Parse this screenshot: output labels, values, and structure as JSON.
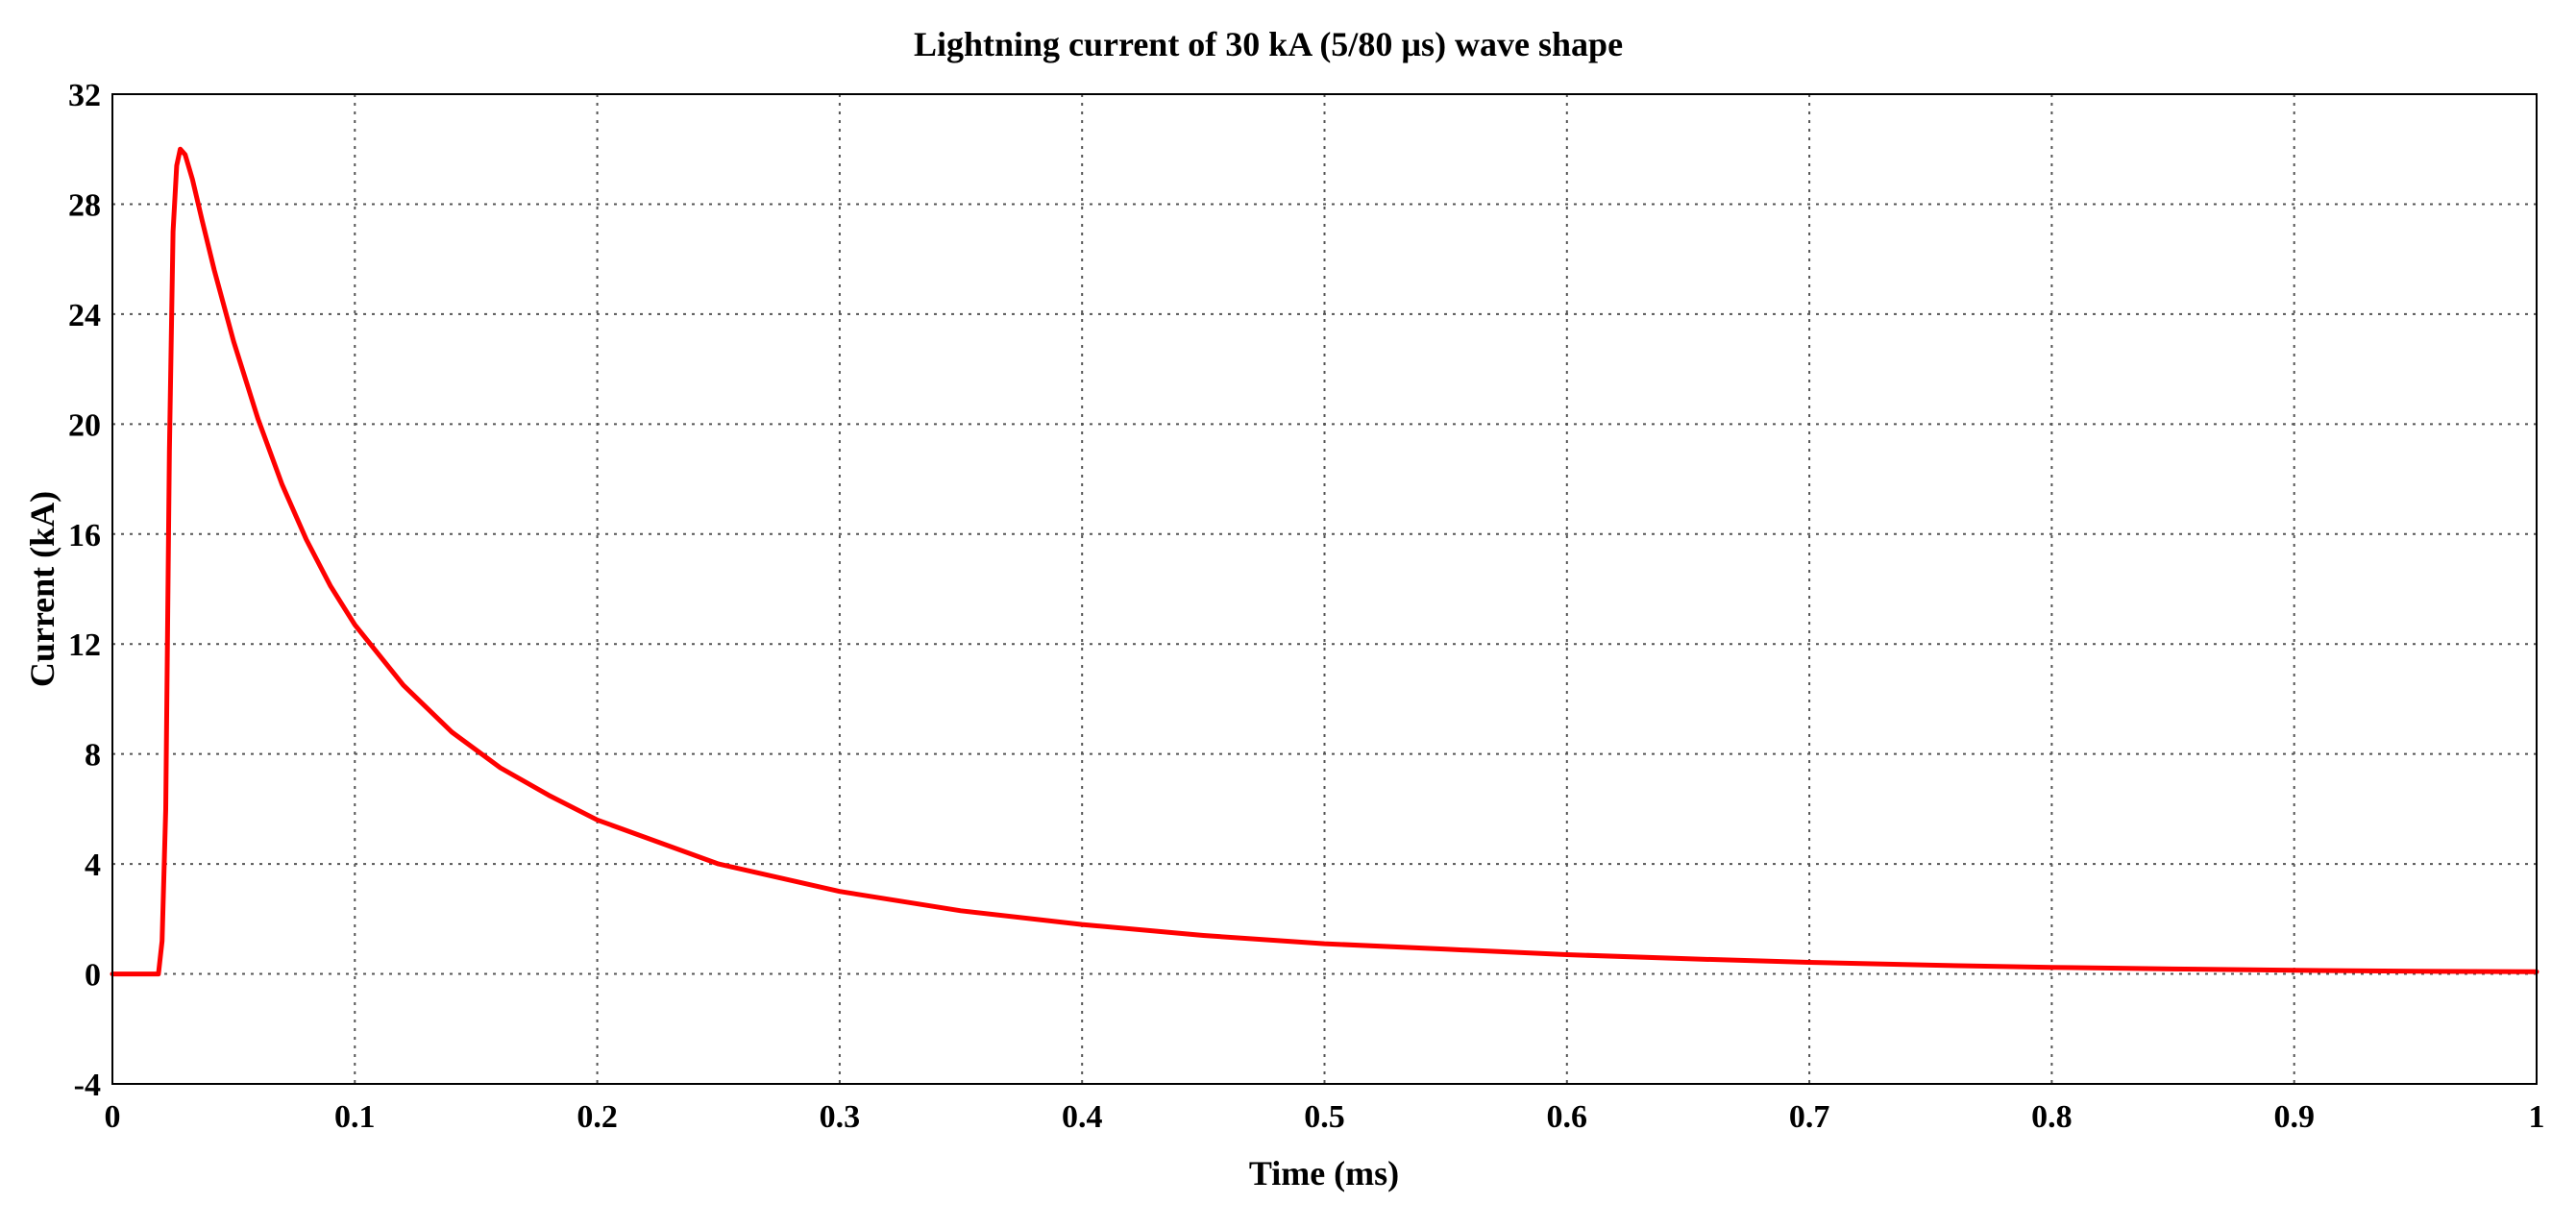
{
  "chart_data": {
    "type": "line",
    "title": "Lightning current of 30 kA (5/80 µs) wave shape",
    "xlabel": "Time (ms)",
    "ylabel": "Current (kA)",
    "xlim": [
      0,
      1
    ],
    "ylim": [
      -4,
      32
    ],
    "xticks": [
      {
        "value": 0,
        "label": "0"
      },
      {
        "value": 0.1,
        "label": "0.1"
      },
      {
        "value": 0.2,
        "label": "0.2"
      },
      {
        "value": 0.3,
        "label": "0.3"
      },
      {
        "value": 0.4,
        "label": "0.4"
      },
      {
        "value": 0.5,
        "label": "0.5"
      },
      {
        "value": 0.6,
        "label": "0.6"
      },
      {
        "value": 0.7,
        "label": "0.7"
      },
      {
        "value": 0.8,
        "label": "0.8"
      },
      {
        "value": 0.9,
        "label": "0.9"
      },
      {
        "value": 1,
        "label": "1"
      }
    ],
    "yticks": [
      {
        "value": 32,
        "label": "32"
      },
      {
        "value": 28,
        "label": "28"
      },
      {
        "value": 24,
        "label": "24"
      },
      {
        "value": 20,
        "label": "20"
      },
      {
        "value": 16,
        "label": "16"
      },
      {
        "value": 12,
        "label": "12"
      },
      {
        "value": 8,
        "label": "8"
      },
      {
        "value": 4,
        "label": "4"
      },
      {
        "value": 0,
        "label": "0"
      },
      {
        "value": -4,
        "label": "-4"
      }
    ],
    "grid": true,
    "series": [
      {
        "name": "Lightning current",
        "color": "#ff0000",
        "x": [
          0,
          0.019,
          0.0205,
          0.022,
          0.0235,
          0.025,
          0.0265,
          0.028,
          0.03,
          0.033,
          0.037,
          0.042,
          0.05,
          0.06,
          0.07,
          0.08,
          0.09,
          0.1,
          0.12,
          0.14,
          0.16,
          0.18,
          0.2,
          0.25,
          0.3,
          0.35,
          0.4,
          0.45,
          0.5,
          0.55,
          0.6,
          0.65,
          0.7,
          0.75,
          0.8,
          0.85,
          0.9,
          0.95,
          1.0
        ],
        "y": [
          0,
          0,
          1.2,
          6,
          19,
          27,
          29.4,
          30.0,
          29.8,
          28.9,
          27.4,
          25.6,
          23.0,
          20.2,
          17.8,
          15.8,
          14.1,
          12.7,
          10.5,
          8.8,
          7.5,
          6.5,
          5.6,
          4.0,
          3.0,
          2.3,
          1.8,
          1.4,
          1.1,
          0.9,
          0.7,
          0.55,
          0.42,
          0.32,
          0.24,
          0.18,
          0.13,
          0.1,
          0.08
        ]
      }
    ]
  }
}
